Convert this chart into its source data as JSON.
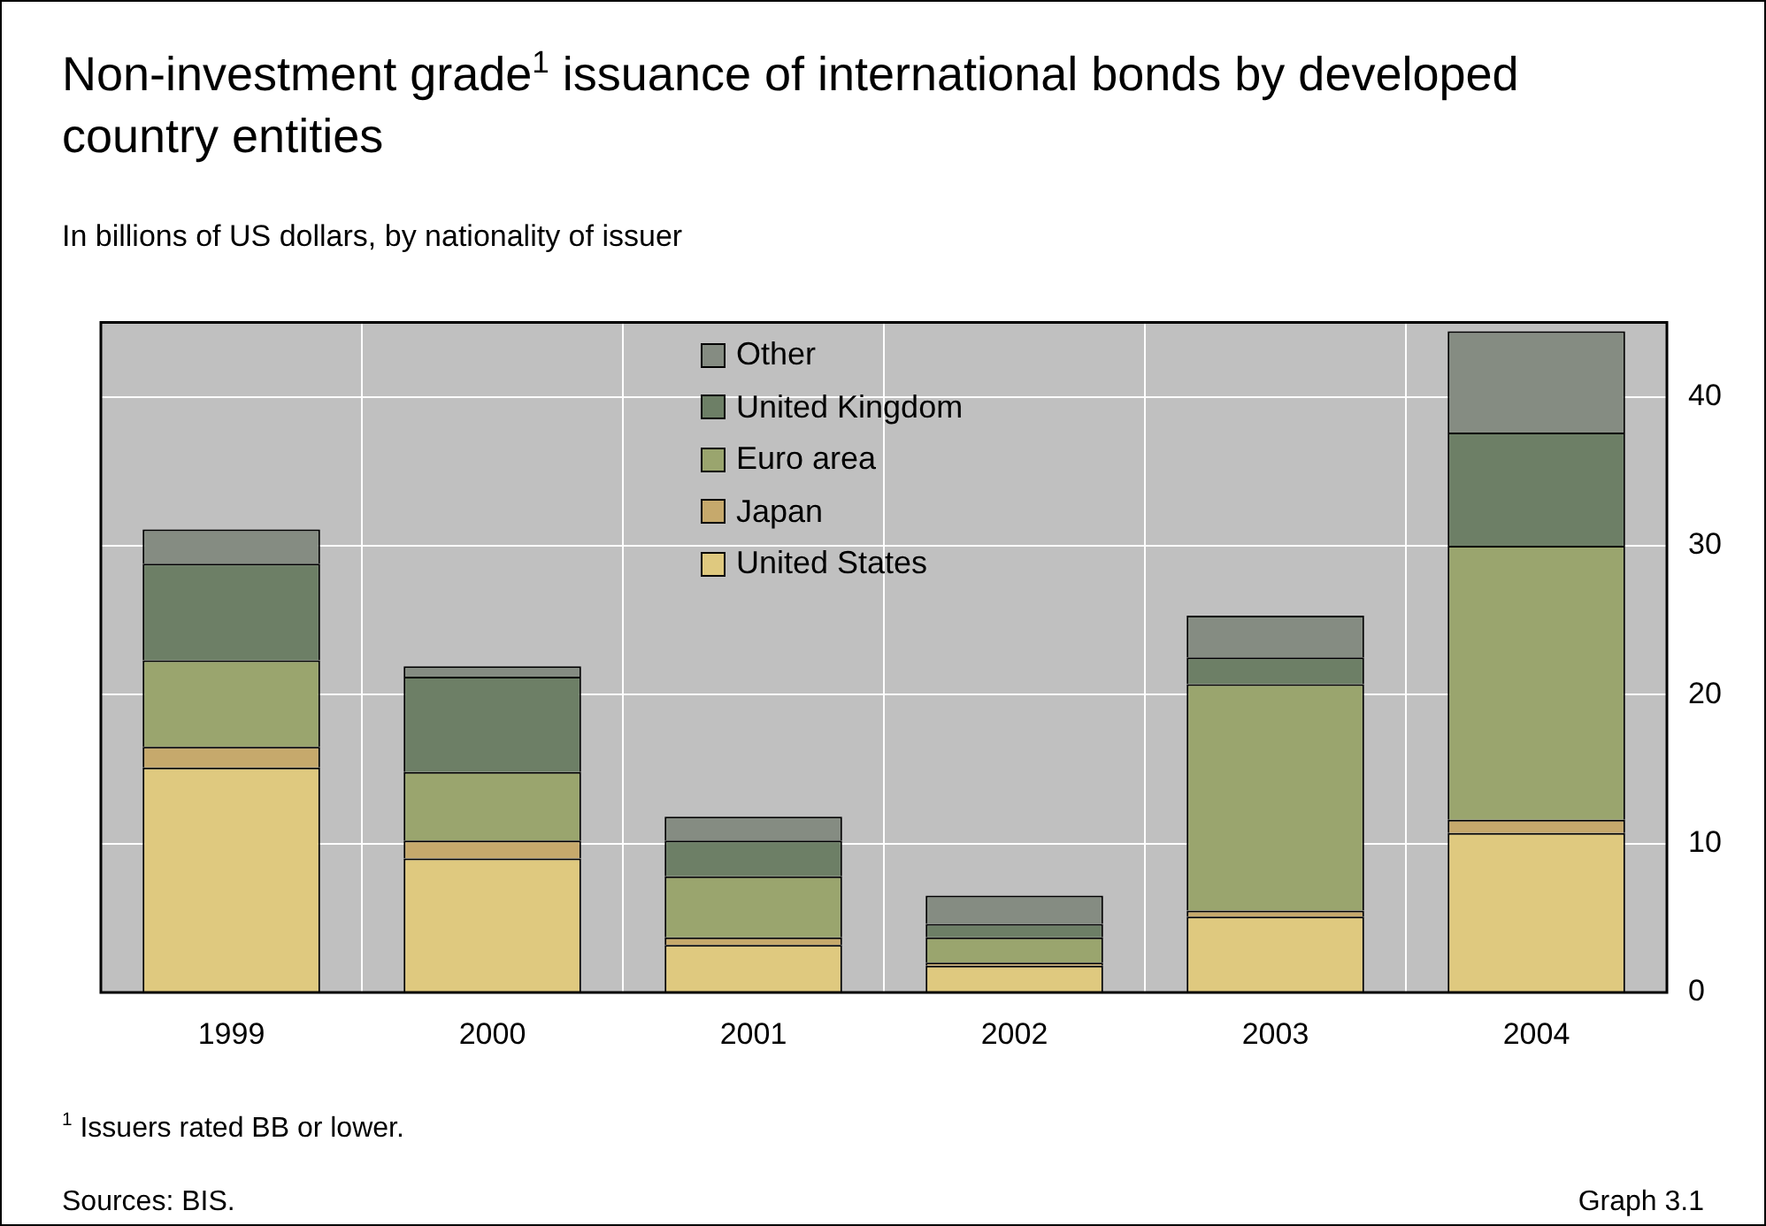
{
  "chart_data": {
    "type": "bar",
    "title": "Non-investment grade$^{1}$ issuance of international bonds by developed country entities",
    "subtitle": "In billions of US dollars, by nationality of issuer",
    "categories": [
      "1999",
      "2000",
      "2001",
      "2002",
      "2003",
      "2004"
    ],
    "stacked": true,
    "series": [
      {
        "name": "United States",
        "color": "#dfc97f",
        "values": [
          15.1,
          9.0,
          3.2,
          1.8,
          5.1,
          10.7
        ]
      },
      {
        "name": "Japan",
        "color": "#c6a96c",
        "values": [
          1.4,
          1.2,
          0.5,
          0.2,
          0.4,
          0.9
        ]
      },
      {
        "name": "Euro area",
        "color": "#9aa56e",
        "values": [
          5.8,
          4.6,
          4.1,
          1.7,
          15.2,
          18.4
        ]
      },
      {
        "name": "United Kingdom",
        "color": "#6d7f66",
        "values": [
          6.5,
          6.4,
          2.4,
          0.9,
          1.8,
          7.6
        ]
      },
      {
        "name": "Other",
        "color": "#858c82",
        "values": [
          2.3,
          0.7,
          1.6,
          1.9,
          2.8,
          6.8
        ]
      }
    ],
    "ylim": [
      0,
      45
    ],
    "yticks": [
      0,
      10,
      20,
      30,
      40
    ],
    "grid": true,
    "legend": "top",
    "annotations": [
      "$^{1}$  Issuers rated BB or lower.",
      "Sources: BIS.",
      "Graph 3.1"
    ]
  }
}
